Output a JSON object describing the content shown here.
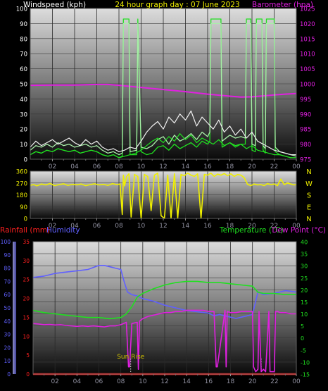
{
  "colors": {
    "yellow": "#f0f000",
    "magenta": "#e020e0",
    "green": "#20e020",
    "light_green": "#a8f0a8",
    "white": "#f0f0f0",
    "red": "#ff2020",
    "blue": "#6060ff",
    "violet": "#c050f0",
    "sunrise": "#d0c000"
  },
  "chart_data": [
    {
      "type": "line",
      "title": "24 hour graph day : 07 June 2023",
      "ylabel": "Windspeed (kph)",
      "y2label": "Barometer (hpa)",
      "ylim": [
        0,
        100
      ],
      "y2lim": [
        975,
        1025
      ],
      "y_ticks": [
        "0",
        "10",
        "20",
        "30",
        "40",
        "50",
        "60",
        "70",
        "80",
        "90",
        "100"
      ],
      "y2_ticks": [
        "975",
        "980",
        "985",
        "990",
        "995",
        "1000",
        "1005",
        "1010",
        "1015",
        "1020",
        "1025"
      ],
      "xlim": [
        0,
        24
      ],
      "x_ticks": [
        "02",
        "04",
        "06",
        "08",
        "10",
        "12",
        "14",
        "16",
        "18",
        "20",
        "22",
        "00"
      ],
      "series": [
        {
          "name": "Barometer",
          "axis": "right",
          "color": "#e020e0",
          "x": [
            0,
            2,
            4,
            6,
            7,
            8,
            10,
            12,
            14,
            16,
            18,
            19,
            20,
            21,
            22,
            23,
            24
          ],
          "values": [
            999.5,
            999.6,
            999.6,
            999.8,
            999.8,
            999.5,
            998.8,
            998.1,
            997.4,
            996.6,
            995.9,
            995.6,
            995.7,
            996.0,
            996.3,
            996.6,
            996.8
          ]
        },
        {
          "name": "Wind direction band",
          "axis": "left",
          "color": "#20e020",
          "x": [
            0,
            0.5,
            1,
            1.5,
            2,
            2.5,
            3,
            3.5,
            4,
            4.5,
            5,
            5.5,
            6,
            6.5,
            7,
            7.5,
            8,
            8.3,
            8.4,
            8.9,
            9,
            9.6,
            9.7,
            10,
            10.5,
            11,
            11.5,
            12,
            12.5,
            13,
            13.5,
            14,
            14.5,
            15,
            15.5,
            16,
            16.2,
            16.3,
            17.2,
            17.3,
            18,
            18.5,
            19,
            19.4,
            19.5,
            19.9,
            20,
            20.3,
            20.4,
            20.9,
            21,
            21.2,
            21.3,
            22,
            22.1,
            22.5,
            23,
            23.5,
            24
          ],
          "values": [
            3,
            5,
            4,
            6,
            5,
            7,
            6,
            5,
            6,
            4,
            5,
            6,
            5,
            3,
            2,
            3,
            1,
            2,
            93,
            93,
            3,
            3,
            93,
            5,
            3,
            4,
            8,
            9,
            6,
            10,
            7,
            9,
            11,
            8,
            12,
            10,
            12,
            93,
            93,
            8,
            11,
            9,
            10,
            10,
            93,
            93,
            6,
            5,
            93,
            93,
            6,
            4,
            93,
            93,
            5,
            3,
            2,
            1,
            1
          ]
        },
        {
          "name": "Wind gust band",
          "axis": "left",
          "color": "#a8f0a8",
          "x": [
            0,
            0.5,
            1,
            1.5,
            2,
            2.5,
            3,
            3.5,
            4,
            4.5,
            5,
            5.5,
            6,
            6.5,
            7,
            7.5,
            8,
            8.3,
            8.4,
            8.9,
            9,
            9.6,
            9.7,
            10,
            10.5,
            11,
            11.5,
            12,
            12.5,
            13,
            13.5,
            14,
            14.5,
            15,
            15.5,
            16,
            16.2,
            16.3,
            17.2,
            17.3,
            18,
            18.5,
            19,
            19.4,
            19.5,
            19.9,
            20,
            20.3,
            20.4,
            20.9,
            21,
            21.2,
            21.3,
            22,
            22.1,
            22.5,
            23,
            23.5,
            24
          ],
          "values": [
            6,
            9,
            8,
            10,
            8,
            11,
            9,
            10,
            8,
            9,
            10,
            8,
            9,
            6,
            4,
            5,
            3,
            4,
            90,
            90,
            5,
            6,
            90,
            8,
            7,
            9,
            13,
            15,
            10,
            16,
            12,
            14,
            17,
            13,
            18,
            15,
            18,
            90,
            90,
            12,
            16,
            14,
            15,
            14,
            90,
            90,
            10,
            9,
            90,
            90,
            9,
            7,
            90,
            90,
            8,
            5,
            4,
            3,
            2
          ]
        },
        {
          "name": "Wind gust",
          "axis": "left",
          "color": "#f0f0f0",
          "x": [
            0,
            0.5,
            1,
            1.5,
            2,
            2.5,
            3,
            3.5,
            4,
            4.5,
            5,
            5.5,
            6,
            6.5,
            7,
            7.5,
            8,
            8.5,
            9,
            9.5,
            10,
            10.5,
            11,
            11.5,
            12,
            12.5,
            13,
            13.5,
            14,
            14.5,
            15,
            15.5,
            16,
            16.5,
            17,
            17.5,
            18,
            18.5,
            19,
            19.5,
            20,
            20.5,
            21,
            21.5,
            22,
            22.5,
            23,
            23.5,
            24
          ],
          "values": [
            8,
            12,
            9,
            11,
            13,
            10,
            12,
            14,
            11,
            9,
            13,
            10,
            12,
            8,
            6,
            7,
            5,
            6,
            8,
            7,
            12,
            18,
            22,
            25,
            20,
            28,
            24,
            30,
            26,
            32,
            22,
            28,
            24,
            20,
            26,
            18,
            22,
            16,
            20,
            14,
            18,
            12,
            10,
            8,
            6,
            5,
            4,
            3,
            3
          ]
        },
        {
          "name": "Windspeed",
          "axis": "left",
          "color": "#20e020",
          "x": [
            0,
            0.5,
            1,
            1.5,
            2,
            2.5,
            3,
            3.5,
            4,
            4.5,
            5,
            5.5,
            6,
            6.5,
            7,
            7.5,
            8,
            8.5,
            9,
            9.5,
            10,
            10.5,
            11,
            11.5,
            12,
            12.5,
            13,
            13.5,
            14,
            14.5,
            15,
            15.5,
            16,
            16.5,
            17,
            17.5,
            18,
            18.5,
            19,
            19.5,
            20,
            20.5,
            21,
            21.5,
            22,
            22.5,
            23,
            23.5,
            24
          ],
          "values": [
            3,
            5,
            4,
            6,
            5,
            7,
            6,
            5,
            6,
            4,
            5,
            6,
            5,
            3,
            2,
            3,
            1,
            2,
            3,
            4,
            6,
            9,
            12,
            14,
            11,
            15,
            12,
            17,
            13,
            16,
            11,
            14,
            12,
            10,
            13,
            9,
            11,
            8,
            10,
            7,
            9,
            6,
            5,
            4,
            3,
            3,
            2,
            1,
            1
          ]
        }
      ]
    },
    {
      "type": "scatter",
      "ylim": [
        0,
        360
      ],
      "y_ticks": [
        "0",
        "90",
        "180",
        "270",
        "360"
      ],
      "y2_ticks": [
        "N",
        "W",
        "S",
        "E",
        "N"
      ],
      "xlim": [
        0,
        24
      ],
      "x_ticks": [
        "02",
        "04",
        "06",
        "08",
        "10",
        "12",
        "14",
        "16",
        "18",
        "20",
        "22",
        "00"
      ],
      "series": [
        {
          "name": "Wind direction",
          "color": "#f0f000",
          "x": [
            0,
            0.3,
            0.6,
            1,
            1.4,
            1.8,
            2.2,
            2.6,
            3,
            3.4,
            3.8,
            4.2,
            4.6,
            5,
            5.4,
            5.8,
            6.2,
            6.6,
            7,
            7.4,
            7.8,
            8.1,
            8.3,
            8.4,
            8.5,
            8.7,
            8.9,
            9.1,
            9.4,
            9.7,
            10,
            10.3,
            10.6,
            10.9,
            11.2,
            11.5,
            11.8,
            12.1,
            12.4,
            12.7,
            13,
            13.3,
            13.6,
            13.9,
            14.2,
            14.5,
            14.8,
            15.1,
            15.4,
            15.7,
            16,
            16.3,
            16.6,
            16.9,
            17.2,
            17.5,
            17.8,
            18.1,
            18.4,
            18.7,
            19,
            19.3,
            19.6,
            19.9,
            20.2,
            20.5,
            20.8,
            21.1,
            21.4,
            21.7,
            22,
            22.3,
            22.6,
            22.9,
            23.2,
            23.5,
            23.8,
            24
          ],
          "values": [
            252,
            258,
            248,
            262,
            255,
            266,
            250,
            258,
            264,
            252,
            260,
            256,
            262,
            250,
            258,
            264,
            255,
            260,
            252,
            265,
            258,
            262,
            30,
            330,
            248,
            320,
            340,
            10,
            335,
            320,
            0,
            335,
            320,
            60,
            330,
            345,
            20,
            0,
            330,
            0,
            340,
            0,
            335,
            325,
            345,
            330,
            320,
            340,
            0,
            335,
            330,
            345,
            320,
            338,
            330,
            342,
            325,
            340,
            320,
            335,
            330,
            310,
            260,
            250,
            262,
            255,
            258,
            250,
            265,
            258,
            262,
            250,
            300,
            258,
            270,
            262,
            255,
            258
          ]
        }
      ]
    },
    {
      "type": "line",
      "ylabel": "Rainfall (mm)",
      "ylabel2": "Humidity",
      "y2label": "Temperature (°C)",
      "y2label2": "Dew Point (°C)",
      "rain_lim": [
        0,
        35
      ],
      "rain_ticks": [
        "0",
        "5",
        "10",
        "15",
        "20",
        "25",
        "30",
        "35"
      ],
      "hum_lim": [
        0,
        100
      ],
      "hum_ticks": [
        "0",
        "10",
        "20",
        "30",
        "40",
        "50",
        "60",
        "70",
        "80",
        "90",
        "100"
      ],
      "temp_lim": [
        -15,
        40
      ],
      "temp_ticks": [
        "-15",
        "-10",
        "-5",
        "0",
        "5",
        "10",
        "15",
        "20",
        "25",
        "30",
        "35",
        "40"
      ],
      "xlim": [
        0,
        24
      ],
      "x_ticks": [
        "02",
        "04",
        "06",
        "08",
        "10",
        "12",
        "14",
        "16",
        "18",
        "20",
        "22",
        "00"
      ],
      "sunrise_label": "Sun Rise",
      "sunrise_x": 8.9,
      "dotted_markers_x": [
        8.9,
        20.8
      ],
      "series": [
        {
          "name": "Humidity",
          "axis": "humidity",
          "color": "#6060ff",
          "x": [
            0,
            1,
            2,
            3,
            4,
            5,
            6,
            6.5,
            7,
            7.5,
            8,
            8.3,
            8.6,
            9,
            9.5,
            10,
            11,
            12,
            13,
            14,
            15,
            16,
            16.5,
            17,
            17.5,
            18,
            18.5,
            19,
            19.5,
            20,
            20.5,
            21,
            22,
            23,
            24
          ],
          "values": [
            73,
            74,
            76,
            77,
            78,
            79,
            82,
            82,
            81,
            80,
            79,
            70,
            62,
            60,
            59,
            57,
            55,
            52,
            50,
            48,
            47,
            46,
            44,
            45,
            44,
            43,
            42,
            43,
            44,
            45,
            62,
            60,
            61,
            63,
            62
          ]
        },
        {
          "name": "Temperature",
          "axis": "temp",
          "color": "#20e020",
          "x": [
            0,
            1,
            2,
            3,
            4,
            5,
            6,
            7,
            8,
            8.5,
            9,
            9.5,
            10,
            11,
            12,
            13,
            14,
            15,
            16,
            17,
            18,
            19,
            20,
            20.5,
            21,
            22,
            23,
            24
          ],
          "values": [
            11.5,
            10.5,
            10,
            9.5,
            9,
            8.5,
            8.5,
            8,
            8.5,
            10,
            13,
            17,
            18.5,
            20.5,
            22,
            23,
            23.5,
            23.5,
            23,
            23,
            22.5,
            22,
            21.5,
            19,
            18.5,
            18.5,
            18,
            18
          ]
        },
        {
          "name": "Dew Point",
          "axis": "temp",
          "color": "#e020e0",
          "x": [
            0,
            0.5,
            1,
            1.5,
            2,
            2.5,
            3,
            3.5,
            4,
            4.5,
            5,
            5.5,
            6,
            6.5,
            7,
            7.5,
            8,
            8.5,
            8.7,
            8.8,
            9,
            9.5,
            9.6,
            9.7,
            10,
            10.5,
            11,
            11.5,
            12,
            12.5,
            13,
            13.5,
            14,
            14.5,
            15,
            15.5,
            16,
            16.5,
            16.7,
            16.8,
            17.5,
            17.6,
            17.7,
            18,
            18.5,
            19,
            19.5,
            20,
            20.1,
            20.3,
            20.5,
            20.6,
            20.8,
            21,
            21.2,
            21.5,
            21.6,
            22,
            22.1,
            22.3,
            22.5,
            22.7,
            23,
            23.5,
            24
          ],
          "values": [
            6,
            5.8,
            5.5,
            5.6,
            5.4,
            5.5,
            5.2,
            5,
            4.8,
            5,
            4.8,
            5,
            4.8,
            4.6,
            5,
            5,
            5.5,
            6.5,
            -12,
            -12,
            6,
            6.5,
            -13,
            7,
            8,
            9,
            9.5,
            10,
            10.5,
            10.5,
            11,
            11,
            11.5,
            11.5,
            11.5,
            11.5,
            11,
            11,
            -12,
            -12,
            11.5,
            -12,
            11,
            10.5,
            10.5,
            11,
            11,
            11,
            -12,
            -14,
            -13,
            11,
            -14,
            -13,
            -14,
            11,
            -14,
            -14,
            11,
            11,
            10.5,
            10.5,
            10.5,
            10,
            10
          ]
        },
        {
          "name": "Rainfall",
          "axis": "rain",
          "color": "#ff2020",
          "x": [
            0,
            24
          ],
          "values": [
            0,
            0
          ]
        }
      ]
    }
  ]
}
